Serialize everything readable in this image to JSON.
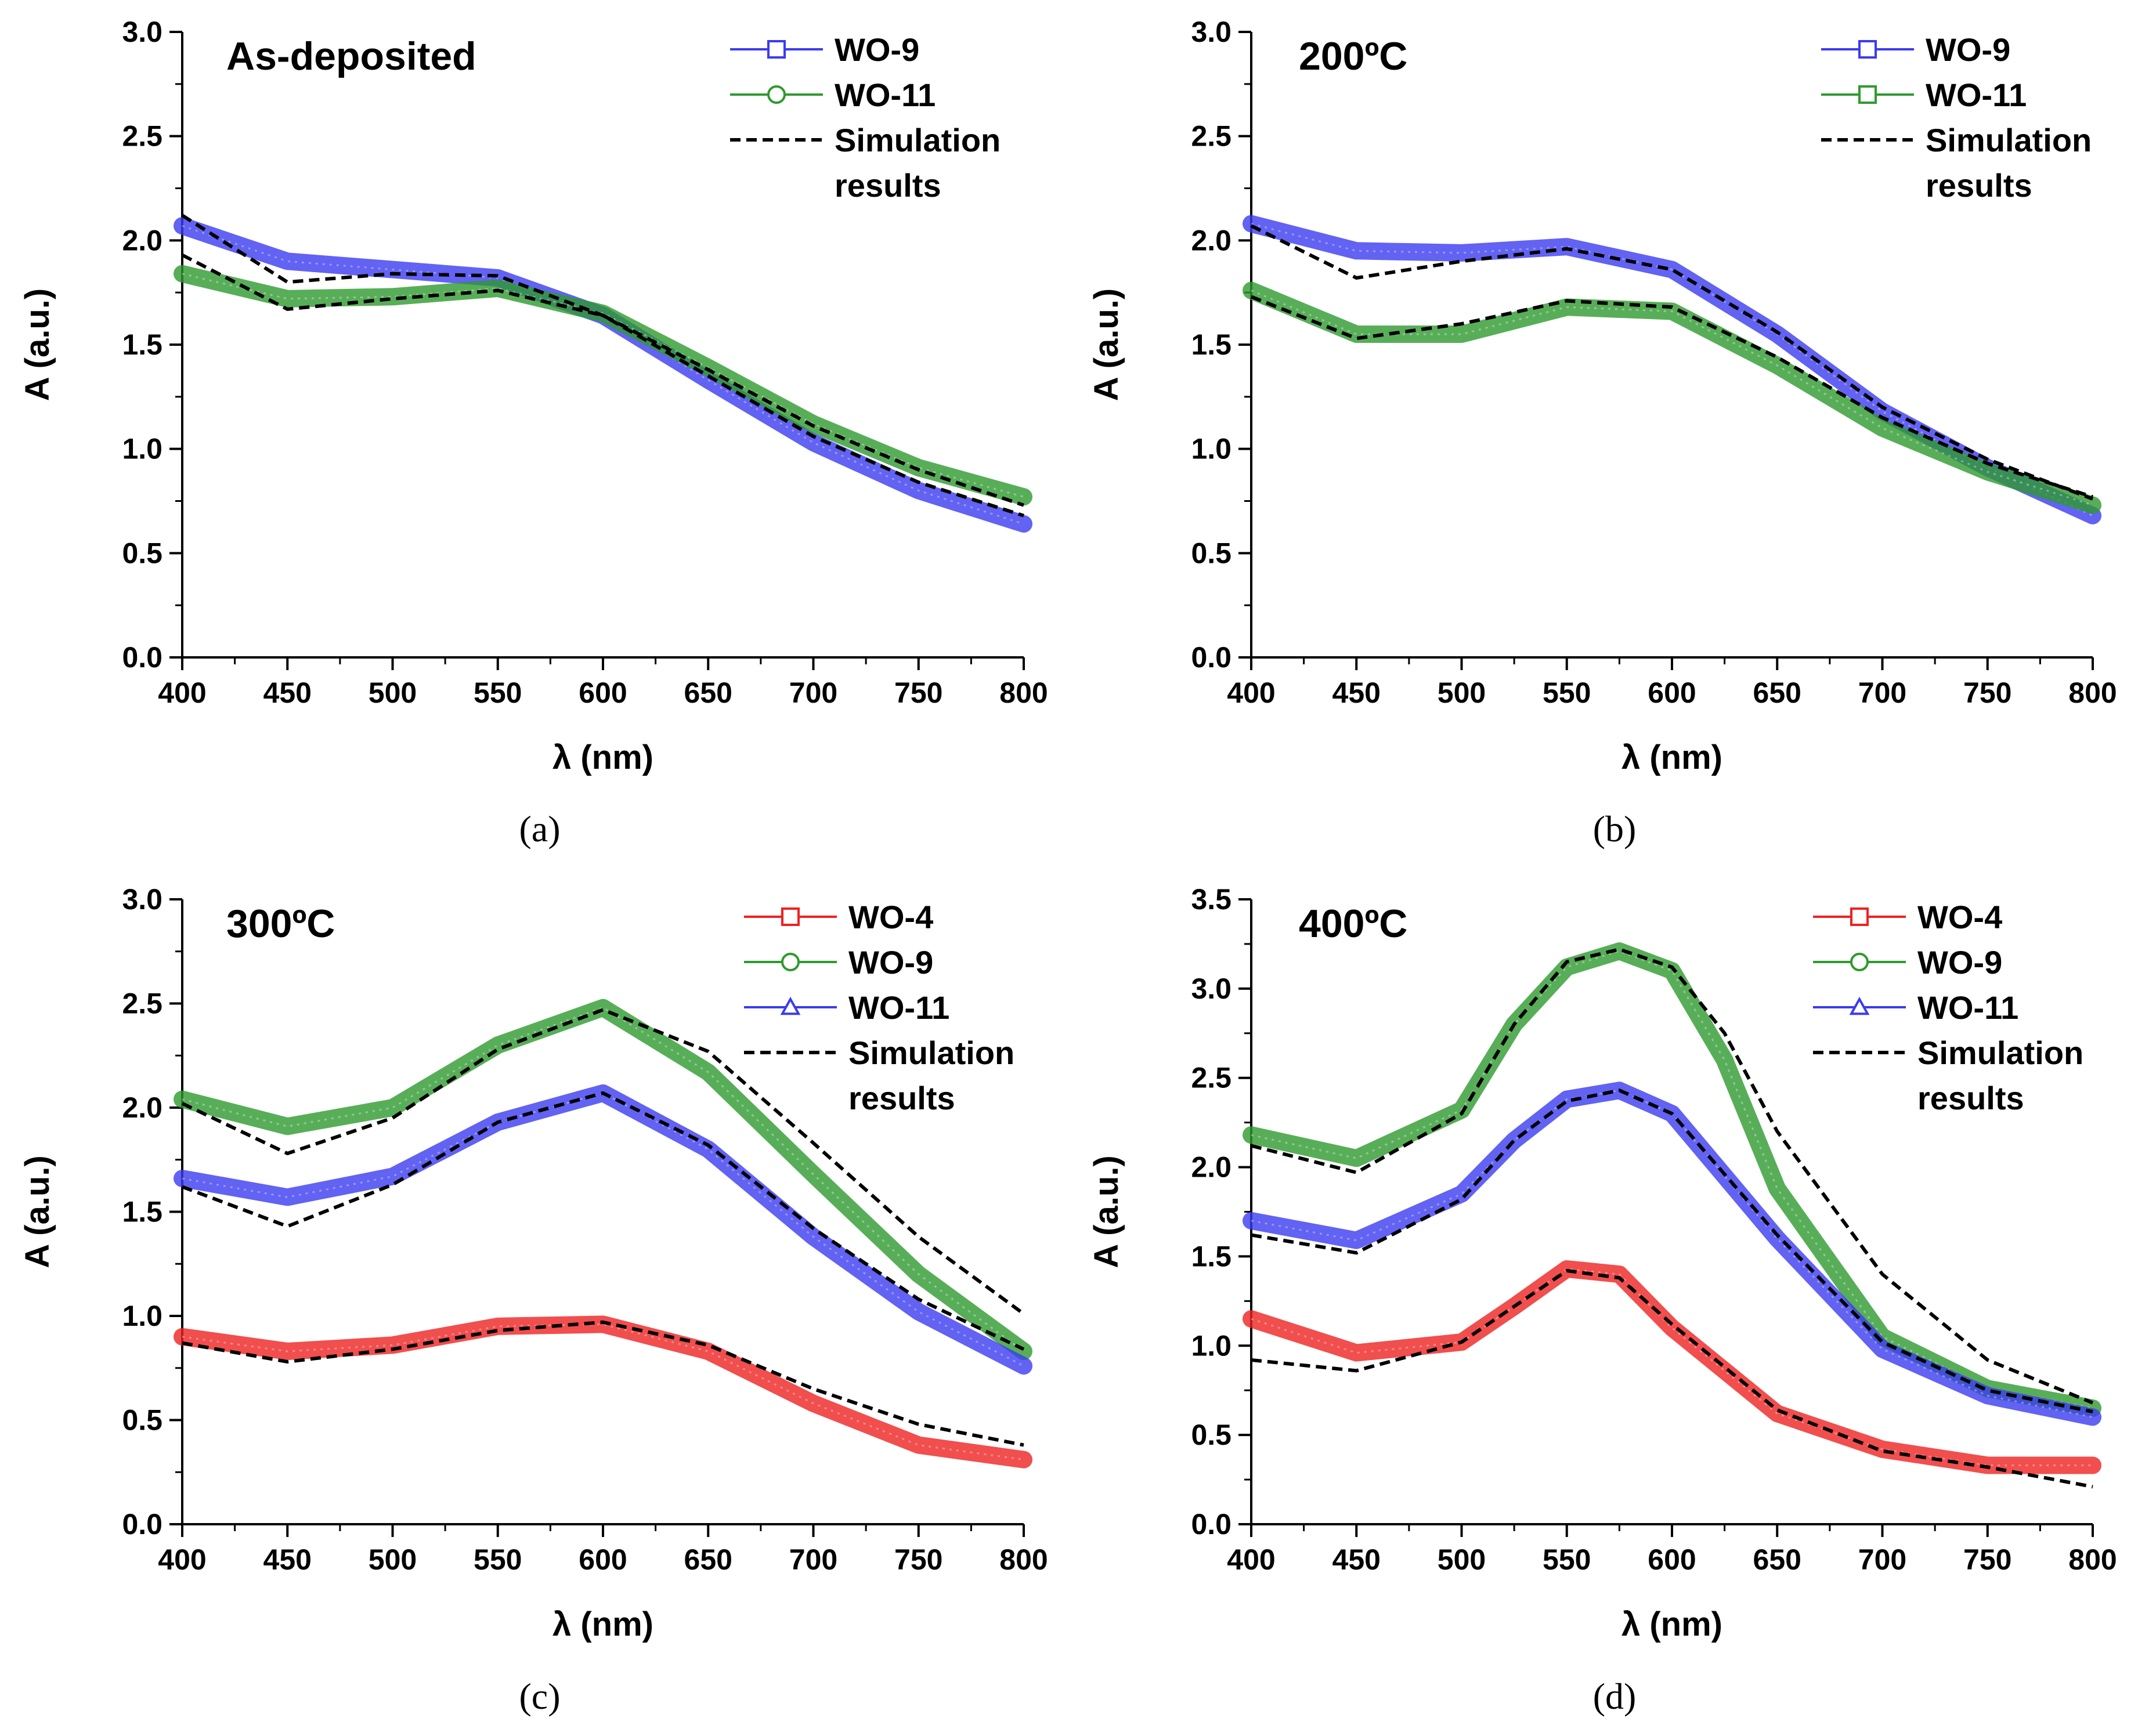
{
  "chart_data": [
    {
      "type": "line",
      "panel_label": "(a)",
      "title": "As-deposited",
      "xlabel": "λ (nm)",
      "ylabel": "A (a.u.)",
      "xlim": [
        400,
        800
      ],
      "ylim": [
        0,
        3.0
      ],
      "xticks": [
        400,
        450,
        500,
        550,
        600,
        650,
        700,
        750,
        800
      ],
      "yticks": [
        0.0,
        0.5,
        1.0,
        1.5,
        2.0,
        2.5,
        3.0
      ],
      "legend": [
        {
          "label": "WO-9",
          "color": "#3b3bf0",
          "marker": "square",
          "style": "solid"
        },
        {
          "label": "WO-11",
          "color": "#2e9a2e",
          "marker": "circle",
          "style": "solid"
        },
        {
          "label": "Simulation",
          "label2": "results",
          "color": "#000000",
          "marker": "none",
          "style": "dashed"
        }
      ],
      "series": [
        {
          "name": "WO-9",
          "color": "#3b3bf0",
          "x": [
            400,
            450,
            500,
            550,
            600,
            650,
            700,
            750,
            800
          ],
          "y": [
            2.07,
            1.9,
            1.86,
            1.82,
            1.64,
            1.33,
            1.03,
            0.8,
            0.64
          ]
        },
        {
          "name": "WO-11",
          "color": "#2e9a2e",
          "x": [
            400,
            450,
            500,
            550,
            600,
            650,
            700,
            750,
            800
          ],
          "y": [
            1.84,
            1.72,
            1.73,
            1.77,
            1.65,
            1.39,
            1.12,
            0.91,
            0.77
          ]
        },
        {
          "name": "Sim WO-9",
          "color": "#000000",
          "dashed": true,
          "x": [
            400,
            450,
            500,
            550,
            600,
            650,
            700,
            750,
            800
          ],
          "y": [
            2.12,
            1.8,
            1.84,
            1.83,
            1.64,
            1.35,
            1.06,
            0.84,
            0.68
          ]
        },
        {
          "name": "Sim WO-11",
          "color": "#000000",
          "dashed": true,
          "x": [
            400,
            450,
            500,
            550,
            600,
            650,
            700,
            750,
            800
          ],
          "y": [
            1.93,
            1.67,
            1.72,
            1.76,
            1.64,
            1.38,
            1.11,
            0.9,
            0.73
          ]
        }
      ]
    },
    {
      "type": "line",
      "panel_label": "(b)",
      "title": "200ºC",
      "xlabel": "λ (nm)",
      "ylabel": "A (a.u.)",
      "xlim": [
        400,
        800
      ],
      "ylim": [
        0,
        3.0
      ],
      "xticks": [
        400,
        450,
        500,
        550,
        600,
        650,
        700,
        750,
        800
      ],
      "yticks": [
        0.0,
        0.5,
        1.0,
        1.5,
        2.0,
        2.5,
        3.0
      ],
      "legend": [
        {
          "label": "WO-9",
          "color": "#3b3bf0",
          "marker": "square",
          "style": "solid"
        },
        {
          "label": "WO-11",
          "color": "#2e9a2e",
          "marker": "square",
          "style": "solid"
        },
        {
          "label": "Simulation",
          "label2": "results",
          "color": "#000000",
          "marker": "none",
          "style": "dashed"
        }
      ],
      "series": [
        {
          "name": "WO-9",
          "color": "#3b3bf0",
          "x": [
            400,
            450,
            500,
            550,
            600,
            650,
            700,
            750,
            800
          ],
          "y": [
            2.08,
            1.95,
            1.94,
            1.97,
            1.86,
            1.55,
            1.18,
            0.91,
            0.68
          ]
        },
        {
          "name": "WO-11",
          "color": "#2e9a2e",
          "x": [
            400,
            450,
            500,
            550,
            600,
            650,
            700,
            750,
            800
          ],
          "y": [
            1.76,
            1.55,
            1.55,
            1.68,
            1.66,
            1.4,
            1.1,
            0.89,
            0.73
          ]
        },
        {
          "name": "Sim WO-9",
          "color": "#000000",
          "dashed": true,
          "x": [
            400,
            450,
            500,
            550,
            600,
            650,
            700,
            750,
            800
          ],
          "y": [
            2.07,
            1.82,
            1.9,
            1.96,
            1.86,
            1.56,
            1.2,
            0.95,
            0.76
          ]
        },
        {
          "name": "Sim WO-11",
          "color": "#000000",
          "dashed": true,
          "x": [
            400,
            450,
            500,
            550,
            600,
            650,
            700,
            750,
            800
          ],
          "y": [
            1.73,
            1.53,
            1.6,
            1.71,
            1.68,
            1.44,
            1.15,
            0.93,
            0.77
          ]
        }
      ]
    },
    {
      "type": "line",
      "panel_label": "(c)",
      "title": "300ºC",
      "xlabel": "λ (nm)",
      "ylabel": "A (a.u.)",
      "xlim": [
        400,
        800
      ],
      "ylim": [
        0,
        3.0
      ],
      "xticks": [
        400,
        450,
        500,
        550,
        600,
        650,
        700,
        750,
        800
      ],
      "yticks": [
        0.0,
        0.5,
        1.0,
        1.5,
        2.0,
        2.5,
        3.0
      ],
      "legend": [
        {
          "label": "WO-4",
          "color": "#ee2222",
          "marker": "square",
          "style": "solid"
        },
        {
          "label": "WO-9",
          "color": "#2e9a2e",
          "marker": "circle",
          "style": "solid"
        },
        {
          "label": "WO-11",
          "color": "#3b3bf0",
          "marker": "triangle",
          "style": "solid"
        },
        {
          "label": "Simulation",
          "label2": "results",
          "color": "#000000",
          "marker": "none",
          "style": "dashed"
        }
      ],
      "series": [
        {
          "name": "WO-4",
          "color": "#ee2222",
          "x": [
            400,
            450,
            500,
            550,
            600,
            650,
            700,
            750,
            800
          ],
          "y": [
            0.9,
            0.83,
            0.86,
            0.95,
            0.96,
            0.83,
            0.58,
            0.38,
            0.31
          ]
        },
        {
          "name": "WO-9",
          "color": "#2e9a2e",
          "x": [
            400,
            450,
            500,
            550,
            600,
            650,
            700,
            750,
            800
          ],
          "y": [
            2.04,
            1.91,
            2.0,
            2.3,
            2.48,
            2.17,
            1.68,
            1.2,
            0.83
          ]
        },
        {
          "name": "WO-11",
          "color": "#3b3bf0",
          "x": [
            400,
            450,
            500,
            550,
            600,
            650,
            700,
            750,
            800
          ],
          "y": [
            1.66,
            1.57,
            1.67,
            1.93,
            2.07,
            1.8,
            1.38,
            1.02,
            0.76
          ]
        },
        {
          "name": "Sim WO-4",
          "color": "#000000",
          "dashed": true,
          "x": [
            400,
            450,
            500,
            550,
            600,
            650,
            700,
            750,
            800
          ],
          "y": [
            0.87,
            0.78,
            0.84,
            0.93,
            0.97,
            0.86,
            0.65,
            0.48,
            0.38
          ]
        },
        {
          "name": "Sim WO-9",
          "color": "#000000",
          "dashed": true,
          "x": [
            400,
            450,
            500,
            550,
            600,
            650,
            700,
            750,
            800
          ],
          "y": [
            2.02,
            1.78,
            1.95,
            2.28,
            2.47,
            2.27,
            1.83,
            1.38,
            1.01
          ]
        },
        {
          "name": "Sim WO-11",
          "color": "#000000",
          "dashed": true,
          "x": [
            400,
            450,
            500,
            550,
            600,
            650,
            700,
            750,
            800
          ],
          "y": [
            1.62,
            1.43,
            1.63,
            1.93,
            2.07,
            1.82,
            1.42,
            1.08,
            0.84
          ]
        }
      ]
    },
    {
      "type": "line",
      "panel_label": "(d)",
      "title": "400ºC",
      "xlabel": "λ (nm)",
      "ylabel": "A (a.u.)",
      "xlim": [
        400,
        800
      ],
      "ylim": [
        0,
        3.5
      ],
      "xticks": [
        400,
        450,
        500,
        550,
        600,
        650,
        700,
        750,
        800
      ],
      "yticks": [
        0.0,
        0.5,
        1.0,
        1.5,
        2.0,
        2.5,
        3.0,
        3.5
      ],
      "legend": [
        {
          "label": "WO-4",
          "color": "#ee2222",
          "marker": "square",
          "style": "solid"
        },
        {
          "label": "WO-9",
          "color": "#2e9a2e",
          "marker": "circle",
          "style": "solid"
        },
        {
          "label": "WO-11",
          "color": "#3b3bf0",
          "marker": "triangle",
          "style": "solid"
        },
        {
          "label": "Simulation",
          "label2": "results",
          "color": "#000000",
          "marker": "none",
          "style": "dashed"
        }
      ],
      "series": [
        {
          "name": "WO-4",
          "color": "#ee2222",
          "x": [
            400,
            450,
            500,
            525,
            550,
            575,
            600,
            650,
            700,
            750,
            800
          ],
          "y": [
            1.15,
            0.96,
            1.02,
            1.22,
            1.43,
            1.4,
            1.1,
            0.62,
            0.42,
            0.33,
            0.33
          ]
        },
        {
          "name": "WO-9",
          "color": "#2e9a2e",
          "x": [
            400,
            450,
            500,
            525,
            550,
            575,
            600,
            625,
            650,
            700,
            750,
            800
          ],
          "y": [
            2.18,
            2.05,
            2.32,
            2.8,
            3.12,
            3.21,
            3.1,
            2.6,
            1.88,
            1.05,
            0.76,
            0.65
          ]
        },
        {
          "name": "WO-11",
          "color": "#3b3bf0",
          "x": [
            400,
            450,
            500,
            525,
            550,
            575,
            600,
            650,
            700,
            750,
            800
          ],
          "y": [
            1.7,
            1.59,
            1.85,
            2.15,
            2.38,
            2.43,
            2.3,
            1.6,
            0.98,
            0.72,
            0.6
          ]
        },
        {
          "name": "Sim WO-4",
          "color": "#000000",
          "dashed": true,
          "x": [
            400,
            450,
            500,
            525,
            550,
            575,
            600,
            650,
            700,
            750,
            800
          ],
          "y": [
            0.92,
            0.86,
            1.02,
            1.22,
            1.42,
            1.38,
            1.12,
            0.64,
            0.41,
            0.32,
            0.21
          ]
        },
        {
          "name": "Sim WO-9",
          "color": "#000000",
          "dashed": true,
          "x": [
            400,
            450,
            500,
            525,
            550,
            575,
            600,
            625,
            650,
            700,
            750,
            800
          ],
          "y": [
            2.12,
            1.97,
            2.3,
            2.8,
            3.15,
            3.22,
            3.12,
            2.75,
            2.2,
            1.4,
            0.92,
            0.68
          ]
        },
        {
          "name": "Sim WO-11",
          "color": "#000000",
          "dashed": true,
          "x": [
            400,
            450,
            500,
            525,
            550,
            575,
            600,
            650,
            700,
            750,
            800
          ],
          "y": [
            1.62,
            1.52,
            1.82,
            2.15,
            2.37,
            2.43,
            2.3,
            1.62,
            1.02,
            0.75,
            0.63
          ]
        }
      ]
    }
  ]
}
